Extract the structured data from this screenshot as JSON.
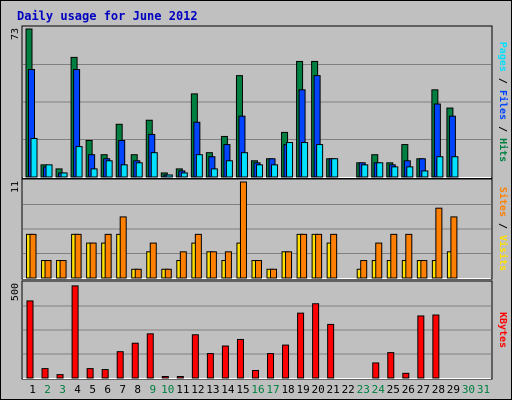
{
  "chart_data": {
    "type": "bar",
    "title": "Daily usage for June 2012",
    "categories": [
      "1",
      "2",
      "3",
      "4",
      "5",
      "6",
      "7",
      "8",
      "9",
      "10",
      "11",
      "12",
      "13",
      "14",
      "15",
      "16",
      "17",
      "18",
      "19",
      "20",
      "21",
      "22",
      "23",
      "24",
      "25",
      "26",
      "27",
      "28",
      "29",
      "30",
      "31"
    ],
    "weekend_days": [
      "2",
      "3",
      "9",
      "10",
      "16",
      "17",
      "23",
      "24",
      "30",
      "31"
    ],
    "panels": [
      {
        "id": "hits",
        "ymax": 73,
        "ymax_label": "73",
        "axis_label_parts": [
          {
            "text": "Pages",
            "color": "#00e0ff"
          },
          {
            "text": " / ",
            "color": "#000000"
          },
          {
            "text": "Files",
            "color": "#0044ff"
          },
          {
            "text": " / ",
            "color": "#000000"
          },
          {
            "text": "Hits",
            "color": "#008040"
          }
        ],
        "series": [
          {
            "name": "Hits",
            "color": "#008040",
            "values": [
              73,
              6,
              4,
              59,
              18,
              11,
              26,
              11,
              28,
              2,
              4,
              41,
              12,
              20,
              50,
              8,
              9,
              22,
              57,
              57,
              9,
              0,
              7,
              11,
              7,
              16,
              9,
              43,
              34,
              0,
              0
            ]
          },
          {
            "name": "Files",
            "color": "#0044ff",
            "values": [
              53,
              5,
              2,
              53,
              11,
              9,
              18,
              8,
              21,
              1,
              3,
              27,
              10,
              16,
              30,
              7,
              9,
              16,
              43,
              50,
              9,
              0,
              7,
              7,
              6,
              8,
              9,
              36,
              30,
              0,
              0
            ]
          },
          {
            "name": "Pages",
            "color": "#00e0ff",
            "values": [
              19,
              6,
              2,
              15,
              4,
              8,
              6,
              7,
              12,
              1,
              2,
              11,
              4,
              8,
              12,
              6,
              6,
              17,
              17,
              16,
              9,
              0,
              6,
              7,
              5,
              5,
              3,
              10,
              10,
              0,
              0
            ]
          }
        ]
      },
      {
        "id": "visits",
        "ymax": 11,
        "ymax_label": "11",
        "axis_label_parts": [
          {
            "text": "Sites",
            "color": "#ff8000"
          },
          {
            "text": " / ",
            "color": "#000000"
          },
          {
            "text": "Visits",
            "color": "#ffe000"
          }
        ],
        "series": [
          {
            "name": "Visits",
            "color": "#ffe000",
            "values": [
              5,
              2,
              2,
              5,
              4,
              4,
              5,
              1,
              3,
              1,
              2,
              4,
              3,
              2,
              4,
              2,
              1,
              3,
              5,
              5,
              4,
              0,
              1,
              2,
              2,
              2,
              2,
              2,
              3,
              0,
              0
            ]
          },
          {
            "name": "Sites",
            "color": "#ff8000",
            "values": [
              5,
              2,
              2,
              5,
              4,
              5,
              7,
              1,
              4,
              1,
              3,
              5,
              3,
              3,
              11,
              2,
              1,
              3,
              5,
              5,
              5,
              0,
              2,
              4,
              5,
              5,
              2,
              8,
              7,
              0,
              0
            ]
          }
        ]
      },
      {
        "id": "kbytes",
        "ymax": 500,
        "ymax_label": "500",
        "axis_label_parts": [
          {
            "text": "KBytes",
            "color": "#ff0000"
          }
        ],
        "series": [
          {
            "name": "KBytes",
            "color": "#ff0000",
            "values": [
              410,
              50,
              18,
              490,
              50,
              45,
              140,
              185,
              235,
              8,
              8,
              230,
              130,
              170,
              205,
              40,
              130,
              175,
              345,
              395,
              285,
              0,
              0,
              80,
              135,
              25,
              330,
              335,
              0,
              0,
              0
            ]
          }
        ]
      }
    ]
  }
}
